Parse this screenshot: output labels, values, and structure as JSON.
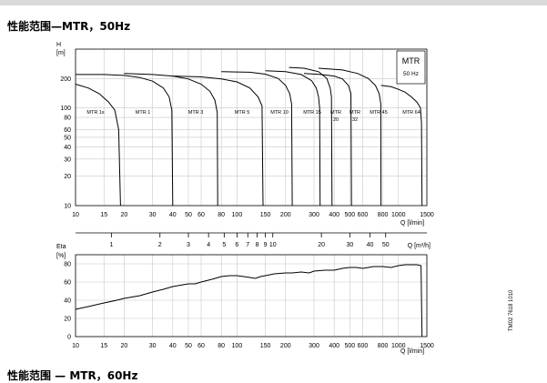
{
  "page": {
    "title": "性能范围—MTR，50Hz",
    "next_title": "性能范围 — MTR，60Hz",
    "doc_code": "TM02 7618 1010"
  },
  "chart_data": [
    {
      "type": "line",
      "chart_id": "head",
      "ylabel_lines": [
        "H",
        "[m]"
      ],
      "xlabel": "Q [l/min]",
      "x_ticks": [
        10,
        15,
        20,
        30,
        40,
        50,
        60,
        80,
        100,
        150,
        200,
        300,
        400,
        500,
        600,
        800,
        1000,
        1500
      ],
      "y_ticks": [
        10,
        20,
        30,
        40,
        50,
        60,
        80,
        100,
        200
      ],
      "x_scale": "log",
      "y_scale": "log",
      "xlim": [
        10,
        1500
      ],
      "ylim": [
        10,
        400
      ],
      "legend": {
        "title": "MTR",
        "subtitle": "50 Hz",
        "placement": "top-right"
      },
      "series": [
        {
          "name": "MTR 1s",
          "label": "MTR 1s",
          "points": [
            [
              10,
              175
            ],
            [
              12,
              160
            ],
            [
              14,
              140
            ],
            [
              16,
              115
            ],
            [
              17.5,
              95
            ],
            [
              18.5,
              60
            ],
            [
              19,
              10
            ]
          ]
        },
        {
          "name": "MTR 1",
          "label": "MTR 1",
          "points": [
            [
              10,
              220
            ],
            [
              15,
              220
            ],
            [
              20,
              215
            ],
            [
              25,
              205
            ],
            [
              30,
              188
            ],
            [
              35,
              160
            ],
            [
              38,
              130
            ],
            [
              39.5,
              95
            ],
            [
              40,
              10
            ]
          ]
        },
        {
          "name": "MTR 3",
          "label": "MTR 3",
          "points": [
            [
              20,
              225
            ],
            [
              30,
              220
            ],
            [
              40,
              212
            ],
            [
              50,
              198
            ],
            [
              60,
              175
            ],
            [
              68,
              148
            ],
            [
              73,
              120
            ],
            [
              75.5,
              90
            ],
            [
              76,
              10
            ]
          ]
        },
        {
          "name": "MTR 5",
          "label": "MTR 5",
          "points": [
            [
              40,
              212
            ],
            [
              60,
              208
            ],
            [
              80,
              198
            ],
            [
              100,
              185
            ],
            [
              120,
              160
            ],
            [
              135,
              130
            ],
            [
              143,
              105
            ],
            [
              145,
              10
            ]
          ]
        },
        {
          "name": "MTR 10",
          "label": "MTR 10",
          "points": [
            [
              80,
              235
            ],
            [
              120,
              232
            ],
            [
              150,
              222
            ],
            [
              180,
              200
            ],
            [
              200,
              170
            ],
            [
              212,
              140
            ],
            [
              218,
              110
            ],
            [
              220,
              10
            ]
          ]
        },
        {
          "name": "MTR 15",
          "label": "MTR 15",
          "points": [
            [
              150,
              240
            ],
            [
              200,
              235
            ],
            [
              250,
              220
            ],
            [
              290,
              190
            ],
            [
              310,
              160
            ],
            [
              320,
              130
            ],
            [
              325,
              100
            ],
            [
              327,
              10
            ]
          ]
        },
        {
          "name": "MTR 20",
          "label": "MTR 20",
          "points": [
            [
              210,
              260
            ],
            [
              260,
              255
            ],
            [
              320,
              235
            ],
            [
              360,
              200
            ],
            [
              378,
              160
            ],
            [
              385,
              130
            ],
            [
              388,
              10
            ]
          ]
        },
        {
          "name": "MTR 32",
          "label": "MTR 32",
          "points": [
            [
              260,
              225
            ],
            [
              330,
              220
            ],
            [
              400,
              212
            ],
            [
              450,
              198
            ],
            [
              490,
              170
            ],
            [
              508,
              140
            ],
            [
              512,
              10
            ]
          ]
        },
        {
          "name": "MTR 45",
          "label": "MTR 45",
          "points": [
            [
              320,
              255
            ],
            [
              450,
              245
            ],
            [
              560,
              225
            ],
            [
              650,
              200
            ],
            [
              720,
              170
            ],
            [
              760,
              140
            ],
            [
              778,
              110
            ],
            [
              780,
              10
            ]
          ]
        },
        {
          "name": "MTR 64",
          "label": "MTR 64",
          "points": [
            [
              780,
              170
            ],
            [
              900,
              165
            ],
            [
              1000,
              155
            ],
            [
              1100,
              145
            ],
            [
              1200,
              130
            ],
            [
              1300,
              115
            ],
            [
              1370,
              100
            ],
            [
              1390,
              70
            ],
            [
              1400,
              10
            ]
          ]
        }
      ]
    },
    {
      "type": "line",
      "chart_id": "efficiency",
      "ylabel_lines": [
        "Eta",
        "[%]"
      ],
      "xlabel": "Q [l/min]",
      "x_ticks": [
        10,
        15,
        20,
        30,
        40,
        50,
        60,
        80,
        100,
        150,
        200,
        300,
        400,
        500,
        600,
        800,
        1000,
        1500
      ],
      "y_ticks": [
        0,
        20,
        40,
        60,
        80
      ],
      "x_scale": "log",
      "xlim": [
        10,
        1500
      ],
      "ylim": [
        0,
        90
      ],
      "series": [
        {
          "name": "",
          "points": [
            [
              10,
              30
            ],
            [
              12,
              33
            ],
            [
              15,
              37
            ],
            [
              18,
              40
            ],
            [
              20,
              42
            ],
            [
              25,
              45
            ],
            [
              30,
              49
            ],
            [
              35,
              52
            ],
            [
              40,
              55
            ],
            [
              50,
              58
            ],
            [
              55,
              58
            ],
            [
              60,
              60
            ],
            [
              70,
              63
            ],
            [
              80,
              66
            ],
            [
              90,
              67
            ],
            [
              100,
              67
            ],
            [
              110,
              66
            ],
            [
              120,
              65
            ],
            [
              130,
              64
            ],
            [
              140,
              66
            ],
            [
              150,
              67
            ],
            [
              170,
              69
            ],
            [
              200,
              70
            ],
            [
              220,
              70
            ],
            [
              250,
              71
            ],
            [
              280,
              70
            ],
            [
              300,
              72
            ],
            [
              350,
              73
            ],
            [
              400,
              73
            ],
            [
              450,
              75
            ],
            [
              500,
              76
            ],
            [
              550,
              76
            ],
            [
              600,
              75
            ],
            [
              650,
              76
            ],
            [
              700,
              77
            ],
            [
              800,
              77
            ],
            [
              900,
              76
            ],
            [
              1000,
              78
            ],
            [
              1100,
              79
            ],
            [
              1200,
              79
            ],
            [
              1300,
              79
            ],
            [
              1380,
              78
            ],
            [
              1400,
              0
            ]
          ]
        }
      ]
    }
  ],
  "secondary_axis": {
    "label": "Q [m³/h]",
    "ticks": [
      1,
      2,
      3,
      4,
      5,
      6,
      7,
      8,
      9,
      10,
      20,
      30,
      40,
      50
    ],
    "labeled": [
      1,
      2,
      3,
      4,
      5,
      6,
      7,
      8,
      9,
      10,
      20,
      30,
      40,
      50
    ]
  }
}
